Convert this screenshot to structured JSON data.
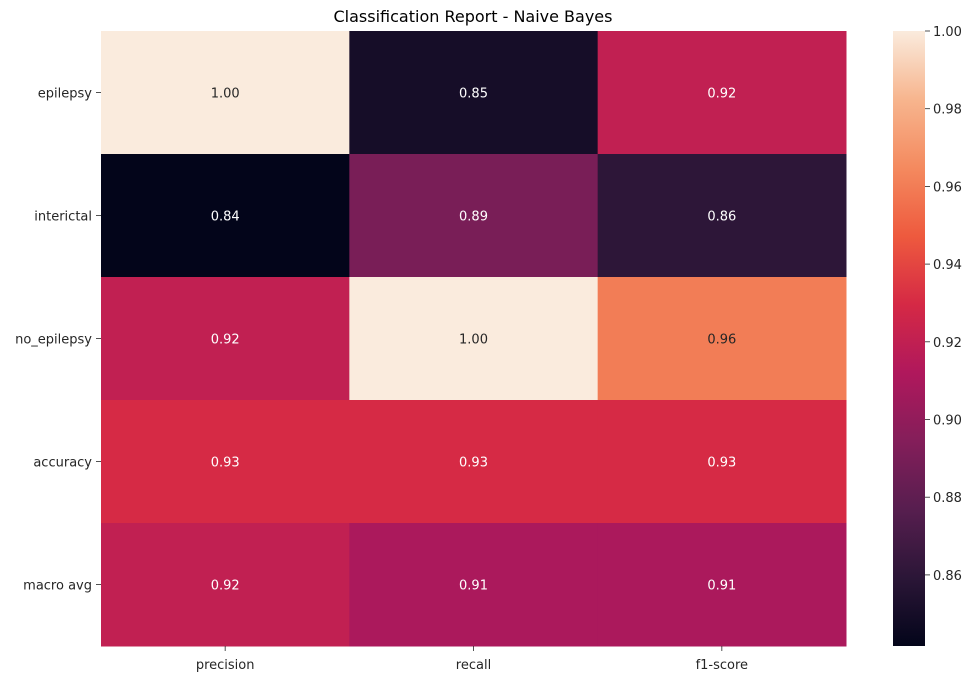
{
  "chart_data": {
    "type": "heatmap",
    "title": "Classification Report - Naive Bayes",
    "xlabel": "",
    "ylabel": "",
    "columns": [
      "precision",
      "recall",
      "f1-score"
    ],
    "rows": [
      "epilepsy",
      "interictal",
      "no_epilepsy",
      "accuracy",
      "macro avg"
    ],
    "values": [
      [
        1.0,
        0.85,
        0.92
      ],
      [
        0.84,
        0.89,
        0.86
      ],
      [
        0.92,
        1.0,
        0.96
      ],
      [
        0.93,
        0.93,
        0.93
      ],
      [
        0.92,
        0.91,
        0.91
      ]
    ],
    "cell_labels": [
      [
        "1.00",
        "0.85",
        "0.92"
      ],
      [
        "0.84",
        "0.89",
        "0.86"
      ],
      [
        "0.92",
        "1.00",
        "0.96"
      ],
      [
        "0.93",
        "0.93",
        "0.93"
      ],
      [
        "0.92",
        "0.91",
        "0.91"
      ]
    ],
    "colorbar": {
      "vmin": 0.8417,
      "vmax": 1.0,
      "ticks": [
        "0.86",
        "0.88",
        "0.90",
        "0.92",
        "0.94",
        "0.96",
        "0.98",
        "1.00"
      ],
      "tick_values": [
        0.86,
        0.88,
        0.9,
        0.92,
        0.94,
        0.96,
        0.98,
        1.0
      ],
      "colormap": "rocket",
      "colormap_stops": [
        "#03051a",
        "#2b1637",
        "#571e4f",
        "#841e5a",
        "#b0185c",
        "#d52945",
        "#ee5a3e",
        "#f48a5f",
        "#f7b58e",
        "#faebdd"
      ]
    },
    "grid": false,
    "legend": "colorbar-right"
  }
}
